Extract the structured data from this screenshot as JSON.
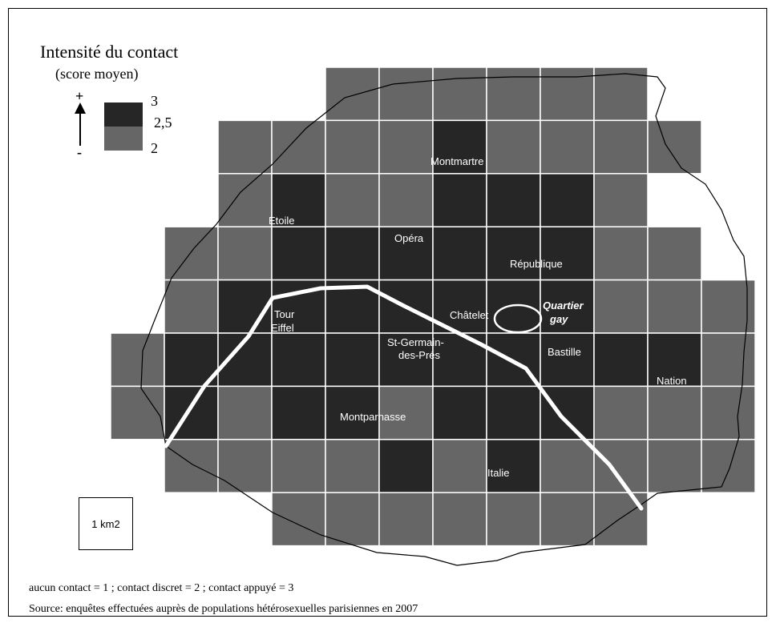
{
  "legend": {
    "title": "Intensité du contact",
    "subtitle": "(score moyen)",
    "plus_sign": "+",
    "minus_sign": "-",
    "classes": [
      {
        "label": "3",
        "color": "#262626"
      },
      {
        "label": "2,5",
        "color": ""
      },
      {
        "label": "2",
        "color": "#666666"
      }
    ]
  },
  "scale": {
    "label": "1 km2"
  },
  "footnotes": {
    "scoring": "aucun contact = 1 ; contact discret = 2 ; contact appuyé = 3",
    "source": "Source: enquêtes effectuées auprès de populations hétérosexuelles parisiennes en 2007"
  },
  "places": [
    {
      "name": "Montmartre",
      "style": "normal"
    },
    {
      "name": "Etoile",
      "style": "normal"
    },
    {
      "name": "Opéra",
      "style": "normal"
    },
    {
      "name": "République",
      "style": "normal"
    },
    {
      "name": "Tour",
      "style": "normal"
    },
    {
      "name": "Eiffel",
      "style": "normal"
    },
    {
      "name": "Châtelet",
      "style": "normal"
    },
    {
      "name": "Quartier",
      "style": "bold-italic"
    },
    {
      "name": "gay",
      "style": "bold-italic"
    },
    {
      "name": "St-Germain-",
      "style": "normal"
    },
    {
      "name": "des-Prés",
      "style": "normal"
    },
    {
      "name": "Bastille",
      "style": "normal"
    },
    {
      "name": "Nation",
      "style": "normal"
    },
    {
      "name": "Montparnasse",
      "style": "normal"
    },
    {
      "name": "Italie",
      "style": "normal"
    }
  ],
  "grid": {
    "colors": {
      "dark": "#262626",
      "light": "#666666"
    },
    "rows": [
      "....LLLLLL..",
      "..LLLLDLLLL.",
      "..LDLLDDDL..",
      ".LLDDDDDDLL.",
      ".LDDDDDDDLLL",
      "LDDDDDDDDDDL",
      "LDLDDLDDDLLL",
      ".LLLLDLDLLLL",
      "...LLLLLLL.."
    ]
  }
}
